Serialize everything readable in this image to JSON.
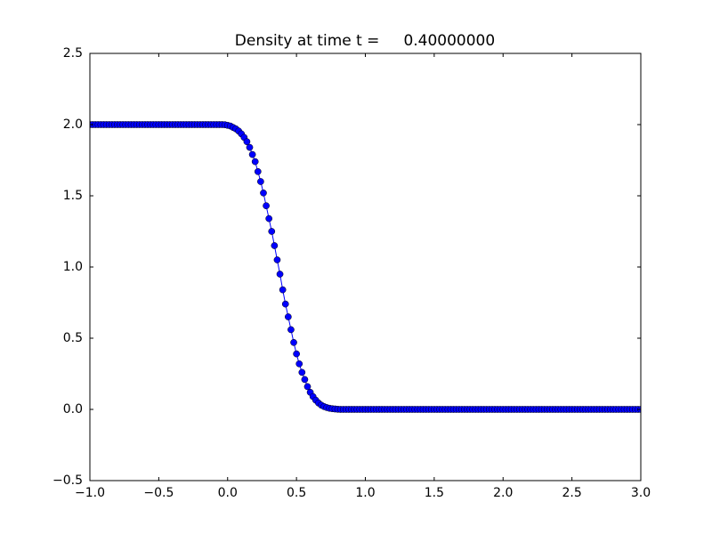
{
  "chart_data": {
    "type": "line",
    "title": "Density at time t =     0.40000000",
    "x": [
      -1,
      -0.98,
      -0.96,
      -0.94,
      -0.92,
      -0.9,
      -0.88,
      -0.86,
      -0.84,
      -0.82,
      -0.8,
      -0.78,
      -0.76,
      -0.74,
      -0.72,
      -0.7,
      -0.68,
      -0.66,
      -0.64,
      -0.62,
      -0.6,
      -0.58,
      -0.56,
      -0.54,
      -0.52,
      -0.5,
      -0.48,
      -0.46,
      -0.44,
      -0.42,
      -0.4,
      -0.38,
      -0.36,
      -0.34,
      -0.32,
      -0.3,
      -0.28,
      -0.26,
      -0.24,
      -0.22,
      -0.2,
      -0.18,
      -0.16,
      -0.14,
      -0.12,
      -0.1,
      -0.08,
      -0.06,
      -0.04,
      -0.02,
      0,
      0.02,
      0.04,
      0.06,
      0.08,
      0.1,
      0.12,
      0.14,
      0.16,
      0.18,
      0.2,
      0.22,
      0.24,
      0.26,
      0.28,
      0.3,
      0.32,
      0.34,
      0.36,
      0.38,
      0.4,
      0.42,
      0.44,
      0.46,
      0.48,
      0.5,
      0.52,
      0.54,
      0.56,
      0.58,
      0.6,
      0.62,
      0.64,
      0.66,
      0.68,
      0.7,
      0.72,
      0.74,
      0.76,
      0.78,
      0.8,
      0.82,
      0.84,
      0.86,
      0.88,
      0.9,
      0.92,
      0.94,
      0.96,
      0.98,
      1,
      1.02,
      1.04,
      1.06,
      1.08,
      1.1,
      1.12,
      1.14,
      1.16,
      1.18,
      1.2,
      1.22,
      1.24,
      1.26,
      1.28,
      1.3,
      1.32,
      1.34,
      1.36,
      1.38,
      1.4,
      1.42,
      1.44,
      1.46,
      1.48,
      1.5,
      1.52,
      1.54,
      1.56,
      1.58,
      1.6,
      1.62,
      1.64,
      1.66,
      1.68,
      1.7,
      1.72,
      1.74,
      1.76,
      1.78,
      1.8,
      1.82,
      1.84,
      1.86,
      1.88,
      1.9,
      1.92,
      1.94,
      1.96,
      1.98,
      2,
      2.02,
      2.04,
      2.06,
      2.08,
      2.1,
      2.12,
      2.14,
      2.16,
      2.18,
      2.2,
      2.22,
      2.24,
      2.26,
      2.28,
      2.3,
      2.32,
      2.34,
      2.36,
      2.38,
      2.4,
      2.42,
      2.44,
      2.46,
      2.48,
      2.5,
      2.52,
      2.54,
      2.56,
      2.58,
      2.6,
      2.62,
      2.64,
      2.66,
      2.68,
      2.7,
      2.72,
      2.74,
      2.76,
      2.78,
      2.8,
      2.82,
      2.84,
      2.86,
      2.88,
      2.9,
      2.92,
      2.94,
      2.96,
      2.98,
      3
    ],
    "series": [
      {
        "color": "#0000ff",
        "values": [
          2,
          2,
          2,
          2,
          2,
          2,
          2,
          2,
          2,
          2,
          2,
          2,
          2,
          2,
          2,
          2,
          2,
          2,
          2,
          2,
          2,
          2,
          2,
          2,
          2,
          2,
          2,
          2,
          2,
          2,
          2,
          2,
          2,
          2,
          2,
          2,
          2,
          2,
          2,
          2,
          2,
          2,
          2,
          2,
          2,
          2,
          2,
          2,
          2,
          1.999,
          1.995,
          1.99,
          1.98,
          1.97,
          1.955,
          1.935,
          1.91,
          1.88,
          1.84,
          1.79,
          1.74,
          1.67,
          1.6,
          1.52,
          1.43,
          1.34,
          1.25,
          1.15,
          1.05,
          0.95,
          0.84,
          0.74,
          0.65,
          0.56,
          0.47,
          0.39,
          0.32,
          0.26,
          0.21,
          0.16,
          0.12,
          0.09,
          0.065,
          0.045,
          0.03,
          0.02,
          0.013,
          0.008,
          0.005,
          0.003,
          0.001,
          0,
          0,
          0,
          0,
          0,
          0,
          0,
          0,
          0,
          0,
          0,
          0,
          0,
          0,
          0,
          0,
          0,
          0,
          0,
          0,
          0,
          0,
          0,
          0,
          0,
          0,
          0,
          0,
          0,
          0,
          0,
          0,
          0,
          0,
          0,
          0,
          0,
          0,
          0,
          0,
          0,
          0,
          0,
          0,
          0,
          0,
          0,
          0,
          0,
          0,
          0,
          0,
          0,
          0,
          0,
          0,
          0,
          0,
          0,
          0,
          0,
          0,
          0,
          0,
          0,
          0,
          0,
          0,
          0,
          0,
          0,
          0,
          0,
          0,
          0,
          0,
          0,
          0,
          0,
          0,
          0,
          0,
          0,
          0,
          0,
          0,
          0,
          0,
          0,
          0,
          0,
          0,
          0,
          0,
          0,
          0,
          0,
          0,
          0,
          0,
          0,
          0,
          0,
          0,
          0,
          0,
          0,
          0,
          0,
          0
        ]
      }
    ],
    "xlim": [
      -1,
      3
    ],
    "xticks": [
      {
        "value": -1,
        "label": "−1.0"
      },
      {
        "value": -0.5,
        "label": "−0.5"
      },
      {
        "value": 0,
        "label": "0.0"
      },
      {
        "value": 0.5,
        "label": "0.5"
      },
      {
        "value": 1,
        "label": "1.0"
      },
      {
        "value": 1.5,
        "label": "1.5"
      },
      {
        "value": 2,
        "label": "2.0"
      },
      {
        "value": 2.5,
        "label": "2.5"
      },
      {
        "value": 3,
        "label": "3.0"
      }
    ],
    "ylim": [
      -0.5,
      2.5
    ],
    "yticks": [
      {
        "value": -0.5,
        "label": "−0.5"
      },
      {
        "value": 0,
        "label": "0.0"
      },
      {
        "value": 0.5,
        "label": "0.5"
      },
      {
        "value": 1,
        "label": "1.0"
      },
      {
        "value": 1.5,
        "label": "1.5"
      },
      {
        "value": 2,
        "label": "2.0"
      },
      {
        "value": 2.5,
        "label": "2.5"
      }
    ]
  }
}
